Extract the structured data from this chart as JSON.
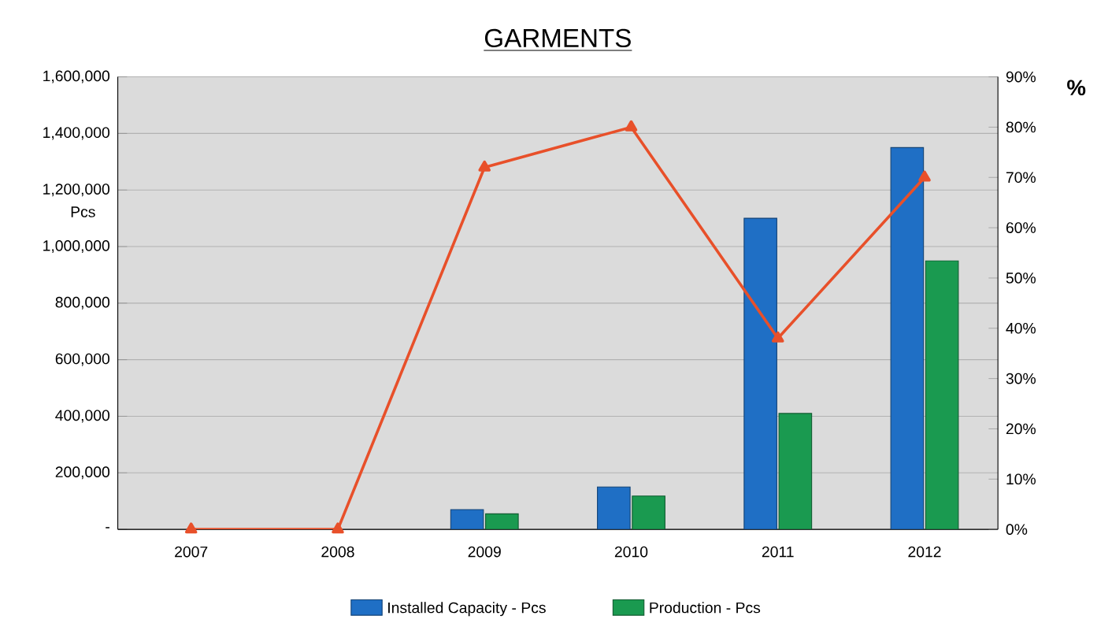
{
  "chart_data": {
    "type": "bar",
    "title": "GARMENTS",
    "ylabel": "Pcs",
    "y2label": "%",
    "categories": [
      "2007",
      "2008",
      "2009",
      "2010",
      "2011",
      "2012"
    ],
    "series": [
      {
        "name": "Installed Capacity - Pcs",
        "color": "#1f6fc5",
        "values": [
          null,
          null,
          70000,
          150000,
          1100000,
          1350000
        ]
      },
      {
        "name": "Production - Pcs",
        "color": "#1a9a50",
        "values": [
          null,
          null,
          55000,
          118000,
          410000,
          950000
        ]
      },
      {
        "type": "line",
        "axis": "y2",
        "color": "#e8502a",
        "marker": "triangle",
        "values": [
          0,
          0,
          72,
          80,
          38,
          70
        ]
      }
    ],
    "ylim": [
      0,
      1600000
    ],
    "yticks": [
      {
        "value": 0,
        "label": "-"
      },
      {
        "value": 200000,
        "label": "200,000"
      },
      {
        "value": 400000,
        "label": "400,000"
      },
      {
        "value": 600000,
        "label": "600,000"
      },
      {
        "value": 800000,
        "label": "800,000"
      },
      {
        "value": 1000000,
        "label": "1,000,000"
      },
      {
        "value": 1200000,
        "label": "1,200,000"
      },
      {
        "value": 1400000,
        "label": "1,400,000"
      },
      {
        "value": 1600000,
        "label": "1,600,000"
      }
    ],
    "y2lim": [
      0,
      90
    ],
    "y2ticks": [
      {
        "value": 0,
        "label": "0%"
      },
      {
        "value": 10,
        "label": "10%"
      },
      {
        "value": 20,
        "label": "20%"
      },
      {
        "value": 30,
        "label": "30%"
      },
      {
        "value": 40,
        "label": "40%"
      },
      {
        "value": 50,
        "label": "50%"
      },
      {
        "value": 60,
        "label": "60%"
      },
      {
        "value": 70,
        "label": "70%"
      },
      {
        "value": 80,
        "label": "80%"
      },
      {
        "value": 90,
        "label": "90%"
      }
    ],
    "grid": "y",
    "legend": "bottom"
  }
}
